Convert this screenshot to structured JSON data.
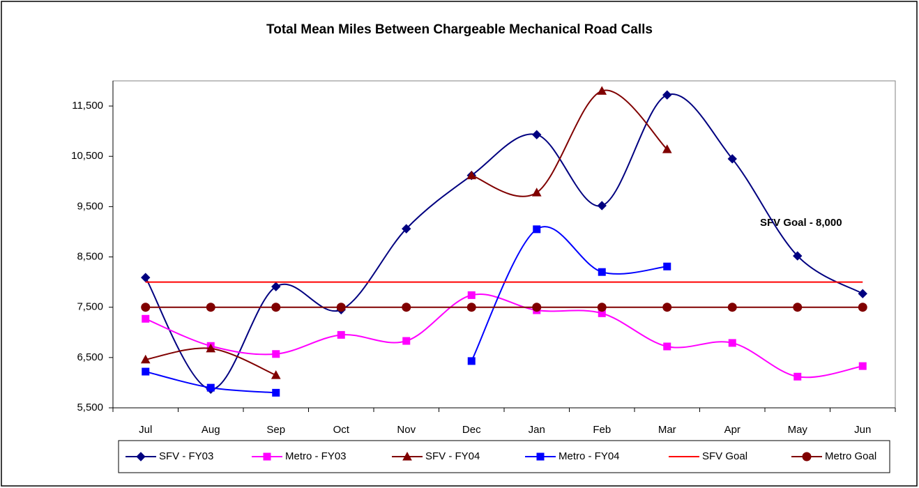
{
  "chart_data": {
    "type": "line",
    "title": "Total Mean Miles Between Chargeable Mechanical Road Calls",
    "categories": [
      "Jul",
      "Aug",
      "Sep",
      "Oct",
      "Nov",
      "Dec",
      "Jan",
      "Feb",
      "Mar",
      "Apr",
      "May",
      "Jun"
    ],
    "ylim": [
      5500,
      12000
    ],
    "yticks": [
      {
        "value": 5500,
        "label": "5,500"
      },
      {
        "value": 6500,
        "label": "6,500"
      },
      {
        "value": 7500,
        "label": "7,500"
      },
      {
        "value": 8500,
        "label": "8,500"
      },
      {
        "value": 9500,
        "label": "9,500"
      },
      {
        "value": 10500,
        "label": "10,500"
      },
      {
        "value": 11500,
        "label": "11,500"
      }
    ],
    "smooth": true,
    "legend": "bottom",
    "annotation": "SFV Goal - 8,000",
    "series": [
      {
        "name": "SFV - FY03",
        "color": "#000080",
        "marker": "diamond",
        "values": [
          8090,
          5870,
          7910,
          7450,
          9060,
          10120,
          10930,
          9520,
          11720,
          10450,
          8520,
          7770
        ]
      },
      {
        "name": "Metro - FY03",
        "color": "#ff00ff",
        "marker": "square",
        "values": [
          7270,
          6730,
          6570,
          6950,
          6830,
          7740,
          7440,
          7380,
          6720,
          6790,
          6120,
          6330
        ]
      },
      {
        "name": "SFV - FY04",
        "color": "#800000",
        "marker": "triangle",
        "values": [
          6460,
          6680,
          6150,
          null,
          null,
          10120,
          9780,
          11800,
          10640,
          null,
          null,
          null
        ]
      },
      {
        "name": "Metro - FY04",
        "color": "#0000ff",
        "marker": "square",
        "values": [
          6220,
          5900,
          5800,
          null,
          null,
          6430,
          9050,
          8200,
          8310,
          null,
          null,
          null
        ]
      },
      {
        "name": "SFV Goal",
        "color": "#ff0000",
        "marker": "none",
        "values": [
          8000,
          8000,
          8000,
          8000,
          8000,
          8000,
          8000,
          8000,
          8000,
          8000,
          8000,
          8000
        ]
      },
      {
        "name": "Metro Goal",
        "color": "#800000",
        "marker": "circle",
        "values": [
          7500,
          7500,
          7500,
          7500,
          7500,
          7500,
          7500,
          7500,
          7500,
          7500,
          7500,
          7500
        ]
      }
    ]
  }
}
